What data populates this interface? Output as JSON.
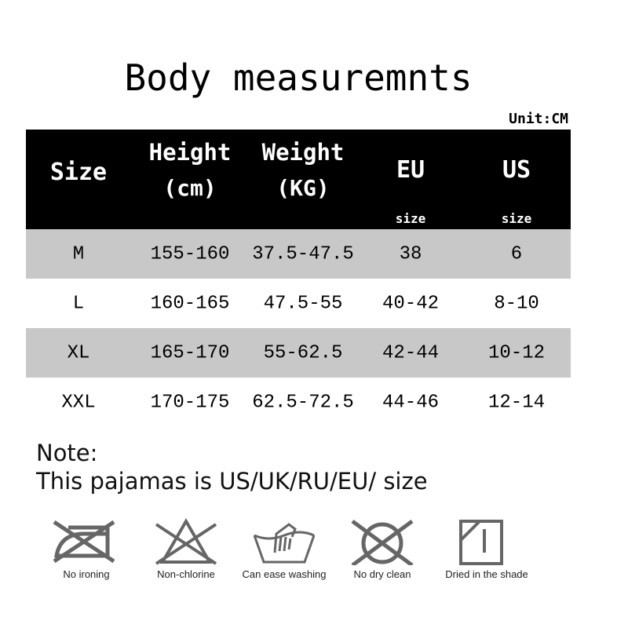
{
  "title": "Body measuremnts",
  "unit": "Unit:CM",
  "header": {
    "size": "Size",
    "height": "Height",
    "height_unit": "(cm)",
    "weight": "Weight",
    "weight_unit": "(KG)",
    "eu": "EU",
    "eu_sub": "size",
    "us": "US",
    "us_sub": "size"
  },
  "rows": [
    {
      "size": "M",
      "height": "155-160",
      "weight": "37.5-47.5",
      "eu": "38",
      "us": "6"
    },
    {
      "size": "L",
      "height": "160-165",
      "weight": "47.5-55",
      "eu": "40-42",
      "us": "8-10"
    },
    {
      "size": "XL",
      "height": "165-170",
      "weight": "55-62.5",
      "eu": "42-44",
      "us": "10-12"
    },
    {
      "size": "XXL",
      "height": "170-175",
      "weight": "62.5-72.5",
      "eu": "44-46",
      "us": "12-14"
    }
  ],
  "note": {
    "label": "Note:",
    "text": "This pajamas is US/UK/RU/EU/ size"
  },
  "care": [
    {
      "icon": "no-ironing-icon",
      "label": "No ironing"
    },
    {
      "icon": "non-chlorine-icon",
      "label": "Non-chlorine"
    },
    {
      "icon": "hand-wash-icon",
      "label": "Can ease washing"
    },
    {
      "icon": "no-dry-clean-icon",
      "label": "No dry clean"
    },
    {
      "icon": "dry-in-shade-icon",
      "label": "Dried in the shade"
    }
  ],
  "colors": {
    "header_bg": "#000000",
    "stripe": "#c8c8c8",
    "icon": "#666666"
  }
}
